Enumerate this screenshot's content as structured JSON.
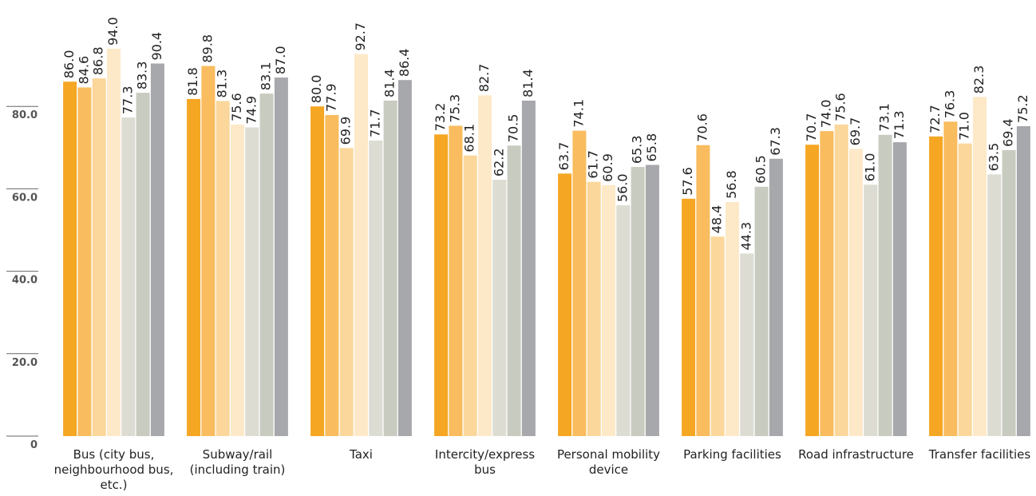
{
  "chart_data": {
    "type": "bar",
    "categories": [
      "Bus (city bus, neighbourhood bus, etc.)",
      "Subway/rail (including train)",
      "Taxi",
      "Intercity/express bus",
      "Personal mobility device",
      "Parking facilities",
      "Road infrastructure",
      "Transfer facilities"
    ],
    "series": [
      {
        "color": "#f5a623",
        "values": [
          86.0,
          81.8,
          80.0,
          73.2,
          63.7,
          57.6,
          70.7,
          72.7
        ],
        "value_labels": [
          "86.0",
          "81.8",
          "80.0",
          "73.2",
          "63.7",
          "57.6",
          "70.7",
          "72.7"
        ]
      },
      {
        "color": "#f9bc5e",
        "values": [
          84.6,
          89.8,
          77.9,
          75.3,
          74.1,
          70.6,
          74.0,
          76.3
        ],
        "value_labels": [
          "84.6",
          "89.8",
          "77.9",
          "75.3",
          "74.1",
          "70.6",
          "74.0",
          "76.3"
        ]
      },
      {
        "color": "#fbd79b",
        "values": [
          86.8,
          81.3,
          69.9,
          68.1,
          61.7,
          48.4,
          75.6,
          71.0
        ],
        "value_labels": [
          "86.8",
          "81.3",
          "69.9",
          "68.1",
          "61.7",
          "48.4",
          "75.6",
          "71.0"
        ]
      },
      {
        "color": "#fde9c8",
        "values": [
          94.0,
          75.6,
          92.7,
          82.7,
          60.9,
          56.8,
          69.7,
          82.3
        ],
        "value_labels": [
          "94.0",
          "75.6",
          "92.7",
          "82.7",
          "60.9",
          "56.8",
          "69.7",
          "82.3"
        ]
      },
      {
        "color": "#dcdcd3",
        "values": [
          77.3,
          74.9,
          71.7,
          62.2,
          56.0,
          44.3,
          61.0,
          63.5
        ],
        "value_labels": [
          "77.3",
          "74.9",
          "71.7",
          "62.2",
          "56.0",
          "44.3",
          "61.0",
          "63.5"
        ]
      },
      {
        "color": "#c8cbbf",
        "values": [
          83.3,
          83.1,
          81.4,
          70.5,
          65.3,
          60.5,
          73.1,
          69.4
        ],
        "value_labels": [
          "83.3",
          "83.1",
          "81.4",
          "70.5",
          "65.3",
          "60.5",
          "73.1",
          "69.4"
        ]
      },
      {
        "color": "#a7a8ac",
        "values": [
          90.4,
          87.0,
          86.4,
          81.4,
          65.8,
          67.3,
          71.3,
          75.2
        ],
        "value_labels": [
          "90.4",
          "87.0",
          "86.4",
          "81.4",
          "65.8",
          "67.3",
          "71.3",
          "75.2"
        ]
      }
    ],
    "ylim": [
      0,
      100
    ],
    "yticks": [
      0,
      {
        "value": 20,
        "label": "20.0"
      },
      {
        "value": 40,
        "label": "40.0"
      },
      {
        "value": 60,
        "label": "60.0"
      },
      {
        "value": 80,
        "label": "80.0"
      }
    ]
  }
}
